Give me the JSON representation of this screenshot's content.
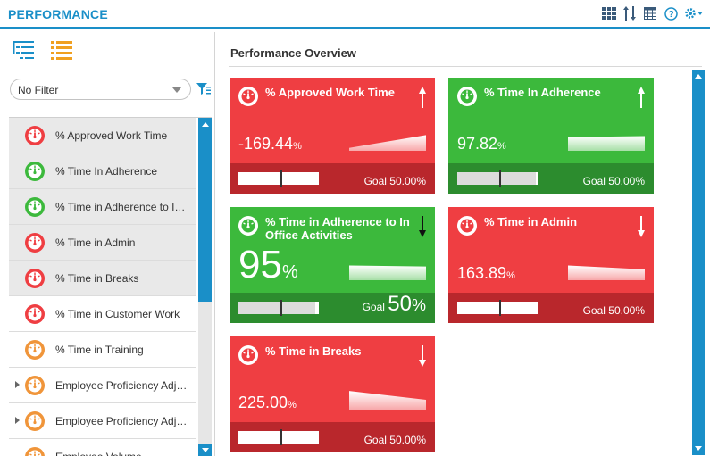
{
  "app": {
    "title": "PERFORMANCE"
  },
  "header_icons": [
    "grid-view-icon",
    "sort-icon",
    "table-icon",
    "help-icon",
    "settings-icon"
  ],
  "filter": {
    "value": "No Filter"
  },
  "list": {
    "items": [
      {
        "label": "% Approved Work Time",
        "status": "red",
        "selected": true,
        "expandable": false
      },
      {
        "label": "% Time In Adherence",
        "status": "green",
        "selected": true,
        "expandable": false
      },
      {
        "label": "% Time in Adherence to In Office Activities",
        "status": "green",
        "selected": true,
        "expandable": false
      },
      {
        "label": "% Time in Admin",
        "status": "red",
        "selected": true,
        "expandable": false
      },
      {
        "label": "% Time in Breaks",
        "status": "red",
        "selected": true,
        "expandable": false
      },
      {
        "label": "% Time in Customer Work",
        "status": "red",
        "selected": false,
        "expandable": false
      },
      {
        "label": "% Time in Training",
        "status": "orange",
        "selected": false,
        "expandable": false
      },
      {
        "label": "Employee Proficiency Adjustment",
        "status": "orange",
        "selected": false,
        "expandable": true
      },
      {
        "label": "Employee Proficiency Adjustment",
        "status": "orange",
        "selected": false,
        "expandable": true
      },
      {
        "label": "Employee Volume",
        "status": "orange",
        "selected": false,
        "expandable": false
      }
    ]
  },
  "overview": {
    "title": "Performance Overview",
    "tiles": [
      {
        "title": "% Approved Work Time",
        "status": "red",
        "value": "-169.44",
        "unit": "%",
        "trend": "up",
        "goal_text": "Goal",
        "goal_value": "50.00",
        "goal_unit": "%",
        "big": false,
        "progress": 0.5,
        "spark": [
          0.15,
          0.8
        ]
      },
      {
        "title": "% Time In Adherence",
        "status": "green",
        "value": "97.82",
        "unit": "%",
        "trend": "up",
        "goal_text": "Goal",
        "goal_value": "50.00",
        "goal_unit": "%",
        "big": false,
        "progress": 0.98,
        "spark": [
          0.7,
          0.75
        ]
      },
      {
        "title": "% Time in Adherence to In Office Activities",
        "status": "green",
        "value": "95",
        "unit": "%",
        "trend": "down",
        "goal_text": "Goal",
        "goal_value": "50",
        "goal_unit": "%",
        "big": true,
        "progress": 0.95,
        "spark": [
          0.75,
          0.7
        ]
      },
      {
        "title": "% Time in Admin",
        "status": "red",
        "value": "163.89",
        "unit": "%",
        "trend": "down",
        "goal_text": "Goal",
        "goal_value": "50.00",
        "goal_unit": "%",
        "big": false,
        "progress": 0.0,
        "spark": [
          0.75,
          0.55
        ]
      },
      {
        "title": "% Time in Breaks",
        "status": "red",
        "value": "225.00",
        "unit": "%",
        "trend": "down",
        "goal_text": "Goal",
        "goal_value": "50.00",
        "goal_unit": "%",
        "big": false,
        "progress": 0.0,
        "spark": [
          0.95,
          0.5
        ]
      }
    ]
  },
  "colors": {
    "accent": "#1a8fc8",
    "red": "#ef3e42",
    "green": "#3cb93c",
    "orange": "#f0953a"
  }
}
